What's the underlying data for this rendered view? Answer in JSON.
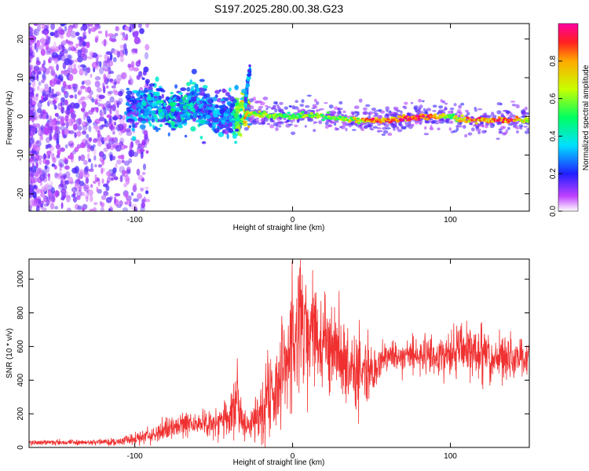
{
  "title": "S197.2025.280.00.38.G23",
  "chart_data": [
    {
      "type": "heatmap",
      "xlabel": "Height of straight line (km)",
      "ylabel": "Frequency (Hz)",
      "xlim": [
        -167,
        150
      ],
      "ylim": [
        -24.5,
        24
      ],
      "xticks": [
        -100,
        0,
        100
      ],
      "yticks": [
        -20,
        -10,
        0,
        10,
        20
      ],
      "colorbar": {
        "label": "Normalized spectral amplitude",
        "range": [
          0,
          1
        ],
        "ticks": [
          "0.0",
          "0.2",
          "0.4",
          "0.6",
          "0.8"
        ],
        "tick_values": [
          0,
          0.2,
          0.4,
          0.6,
          0.8
        ]
      },
      "ridge": {
        "x": [
          -100,
          -90,
          -80,
          -70,
          -60,
          -50,
          -40,
          -30,
          -20,
          -10,
          0,
          10,
          20,
          30,
          40,
          50,
          60,
          70,
          80,
          90,
          100,
          110,
          120,
          130,
          140,
          150
        ],
        "frequency": [
          2,
          3,
          1,
          2,
          3,
          1,
          0,
          1,
          0.5,
          0,
          0,
          0.5,
          0,
          -0.5,
          -1,
          -1,
          -1,
          -0.5,
          0,
          0,
          0,
          -1,
          -1,
          -1,
          -1,
          -1
        ],
        "amplitude": [
          0.3,
          0.35,
          0.4,
          0.4,
          0.35,
          0.3,
          0.3,
          0.7,
          0.65,
          0.6,
          0.55,
          0.6,
          0.6,
          0.6,
          0.7,
          0.85,
          0.85,
          0.9,
          0.95,
          0.85,
          0.6,
          0.8,
          0.85,
          0.9,
          0.9,
          0.6
        ]
      },
      "feature": {
        "x": [
          -30,
          -29,
          -28,
          -27
        ],
        "frequency": [
          3,
          7,
          10,
          12
        ]
      }
    },
    {
      "type": "line",
      "xlabel": "Height of straight line (km)",
      "ylabel": "SNR (10 * v/v)",
      "xlim": [
        -167,
        150
      ],
      "ylim": [
        0,
        1120
      ],
      "xticks": [
        -100,
        0,
        100
      ],
      "yticks": [
        0,
        200,
        400,
        600,
        800,
        1000
      ],
      "series": [
        {
          "name": "SNR",
          "color": "#f03030",
          "x": [
            -167,
            -150,
            -130,
            -110,
            -100,
            -90,
            -80,
            -70,
            -60,
            -50,
            -40,
            -35,
            -30,
            -20,
            -10,
            0,
            5,
            10,
            15,
            20,
            30,
            40,
            50,
            60,
            80,
            100,
            110,
            120,
            130,
            140,
            150
          ],
          "values": [
            30,
            30,
            30,
            35,
            50,
            70,
            110,
            140,
            140,
            150,
            200,
            300,
            120,
            200,
            350,
            650,
            800,
            700,
            750,
            650,
            550,
            450,
            450,
            550,
            550,
            550,
            600,
            550,
            530,
            530,
            550
          ],
          "spread": [
            15,
            15,
            15,
            20,
            30,
            40,
            60,
            80,
            70,
            70,
            120,
            200,
            80,
            200,
            250,
            350,
            350,
            320,
            300,
            280,
            250,
            220,
            120,
            80,
            80,
            130,
            140,
            150,
            130,
            110,
            90
          ]
        }
      ]
    }
  ]
}
